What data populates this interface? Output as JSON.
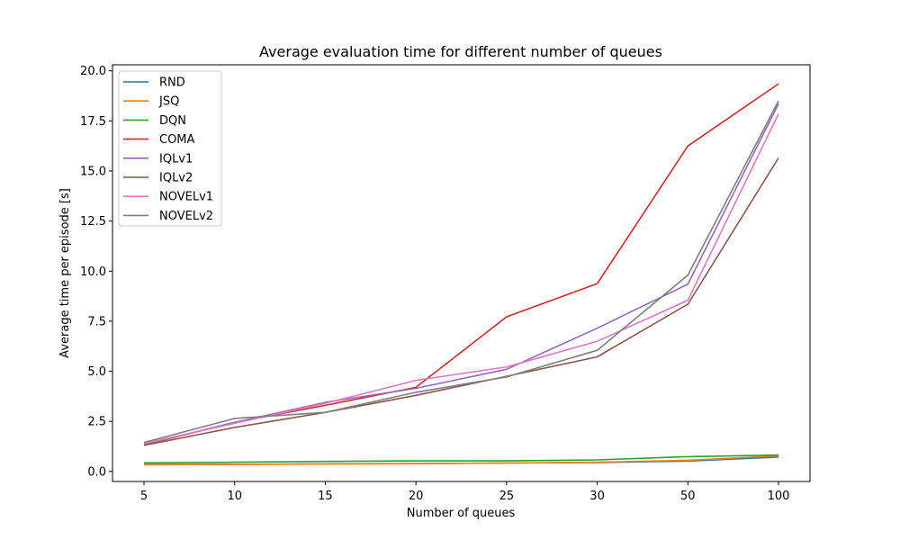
{
  "chart_data": {
    "type": "line",
    "title": "Average evaluation time for different number of queues",
    "xlabel": "Number of queues",
    "ylabel": "Average time per episode [s]",
    "categories": [
      "5",
      "10",
      "15",
      "20",
      "25",
      "30",
      "50",
      "100"
    ],
    "ylim": [
      -0.5,
      20.3
    ],
    "yticks": [
      0.0,
      2.5,
      5.0,
      7.5,
      10.0,
      12.5,
      15.0,
      17.5,
      20.0
    ],
    "ytick_labels": [
      "0.0",
      "2.5",
      "5.0",
      "7.5",
      "10.0",
      "12.5",
      "15.0",
      "17.5",
      "20.0"
    ],
    "grid": false,
    "legend_position": "upper-left",
    "series": [
      {
        "name": "RND",
        "color": "#1f77b4",
        "values": [
          0.35,
          0.36,
          0.38,
          0.4,
          0.42,
          0.45,
          0.52,
          0.72
        ]
      },
      {
        "name": "JSQ",
        "color": "#ff7f0e",
        "values": [
          0.33,
          0.35,
          0.37,
          0.39,
          0.42,
          0.46,
          0.56,
          0.78
        ]
      },
      {
        "name": "DQN",
        "color": "#2ca02c",
        "values": [
          0.43,
          0.46,
          0.5,
          0.53,
          0.53,
          0.58,
          0.74,
          0.82
        ]
      },
      {
        "name": "COMA",
        "color": "#d62728",
        "values": [
          1.33,
          2.45,
          3.3,
          4.2,
          7.72,
          9.38,
          16.25,
          19.35
        ]
      },
      {
        "name": "IQLv1",
        "color": "#9467bd",
        "values": [
          1.35,
          2.45,
          3.45,
          4.15,
          5.1,
          7.15,
          9.35,
          18.35
        ]
      },
      {
        "name": "IQLv2",
        "color": "#8c564b",
        "values": [
          1.3,
          2.2,
          2.95,
          3.8,
          4.75,
          5.72,
          8.35,
          15.65
        ]
      },
      {
        "name": "NOVELv1",
        "color": "#e377c2",
        "values": [
          1.4,
          2.4,
          3.4,
          4.55,
          5.22,
          6.5,
          8.55,
          17.85
        ]
      },
      {
        "name": "NOVELv2",
        "color": "#7f7f7f",
        "values": [
          1.45,
          2.65,
          2.95,
          3.95,
          4.72,
          6.05,
          9.8,
          18.5
        ]
      }
    ]
  }
}
